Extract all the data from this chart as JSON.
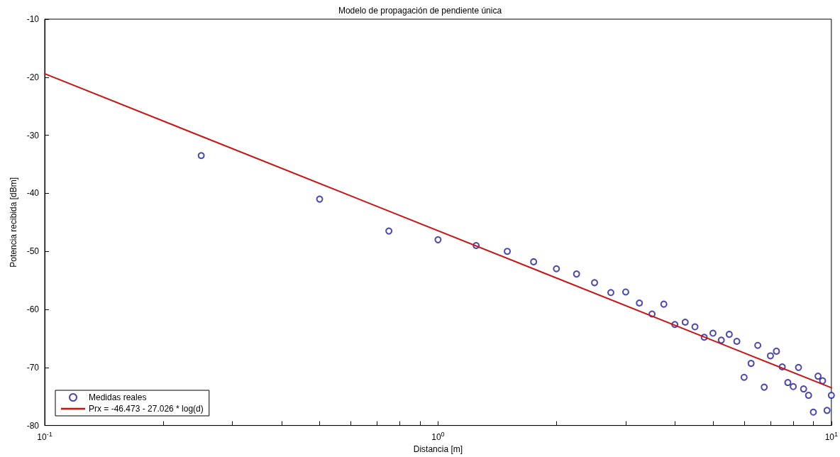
{
  "chart_data": {
    "type": "scatter",
    "title": "Modelo de propagación de pendiente única",
    "xlabel": "Distancia [m]",
    "ylabel": "Potencia recibida [dBm]",
    "log": "x",
    "grid": false,
    "legend": "bottom left",
    "marker": "circle",
    "xlim": [
      0.1,
      10
    ],
    "ylim": [
      -80,
      -10
    ],
    "xticks": [
      {
        "value": 0.1,
        "label": "10$^{-1}$"
      },
      {
        "value": 0.2,
        "label": null
      },
      {
        "value": 0.3,
        "label": null
      },
      {
        "value": 0.4,
        "label": null
      },
      {
        "value": 0.5,
        "label": null
      },
      {
        "value": 0.6,
        "label": null
      },
      {
        "value": 0.7,
        "label": null
      },
      {
        "value": 0.8,
        "label": null
      },
      {
        "value": 0.9,
        "label": null
      },
      {
        "value": 1,
        "label": "10$^{0}$"
      },
      {
        "value": 2,
        "label": null
      },
      {
        "value": 3,
        "label": null
      },
      {
        "value": 4,
        "label": null
      },
      {
        "value": 5,
        "label": null
      },
      {
        "value": 6,
        "label": null
      },
      {
        "value": 7,
        "label": null
      },
      {
        "value": 8,
        "label": null
      },
      {
        "value": 9,
        "label": null
      },
      {
        "value": 10,
        "label": "10$^{1}$"
      }
    ],
    "yticks": [
      -80,
      -70,
      -60,
      -50,
      -40,
      -30,
      -20,
      -10
    ],
    "series": [
      {
        "name": "Medidas reales",
        "color": "#1c1c9c",
        "x": [
          0.25,
          0.5,
          0.75,
          1,
          1.25,
          1.5,
          1.75,
          2,
          2.25,
          2.5,
          2.75,
          3,
          3.25,
          3.5,
          3.75,
          4,
          4.25,
          4.5,
          4.75,
          5,
          5.25,
          5.5,
          5.75,
          6,
          6.25,
          6.5,
          6.75,
          7,
          7.25,
          7.5,
          7.75,
          8,
          8.25,
          8.5,
          8.75,
          9,
          9.25,
          9.5,
          9.75,
          10
        ],
        "values": [
          -33.5,
          -41,
          -46.5,
          -48,
          -49,
          -50,
          -51.8,
          -53,
          -53.9,
          -55.4,
          -57.1,
          -57,
          -58.9,
          -60.8,
          -59.1,
          -62.6,
          -62.2,
          -63,
          -64.8,
          -64.1,
          -65.3,
          -64.3,
          -65.5,
          -71.7,
          -69.3,
          -66.2,
          -73.4,
          -68,
          -67.2,
          -69.9,
          -72.6,
          -73.3,
          -70,
          -73.7,
          -74.8,
          -77.7,
          -71.5,
          -72.3,
          -77.4,
          -74.8
        ]
      },
      {
        "name": "Prx = -46.473 - 27.026 * log(d)",
        "type": "line",
        "color": "#cc1111",
        "line_style": "solid",
        "marker": "none",
        "x": [
          0.1,
          10
        ],
        "values": [
          -19.4,
          -73.5
        ]
      }
    ]
  }
}
